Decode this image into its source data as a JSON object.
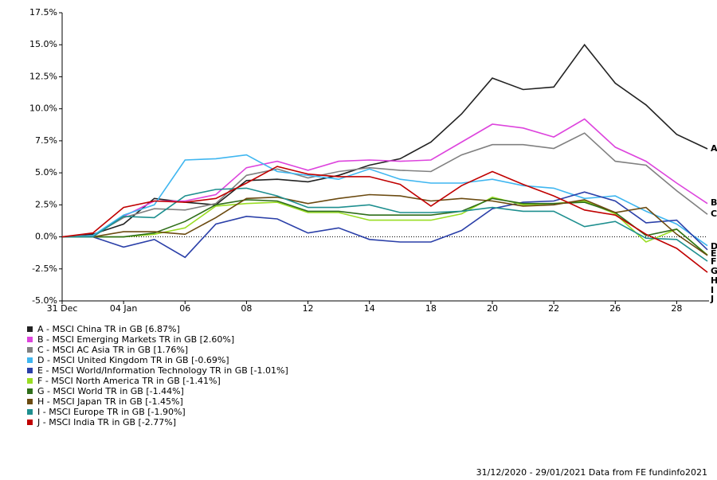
{
  "chart_data": {
    "type": "line",
    "categories": [
      "31 Dec",
      null,
      "04 Jan",
      null,
      "06",
      null,
      "08",
      null,
      "12",
      null,
      "14",
      null,
      "18",
      null,
      "20",
      null,
      "22",
      null,
      "26",
      null,
      "28",
      null
    ],
    "ylim": [
      -5,
      17.5
    ],
    "yticks": [
      {
        "value": -5,
        "label": "-5.0%"
      },
      {
        "value": -2.5,
        "label": "-2.5%"
      },
      {
        "value": 0,
        "label": "0.0%"
      },
      {
        "value": 2.5,
        "label": "2.5%"
      },
      {
        "value": 5,
        "label": "5.0%"
      },
      {
        "value": 7.5,
        "label": "7.5%"
      },
      {
        "value": 10,
        "label": "10.0%"
      },
      {
        "value": 12.5,
        "label": "12.5%"
      },
      {
        "value": 15,
        "label": "15.0%"
      },
      {
        "value": 17.5,
        "label": "17.5%"
      }
    ],
    "footer": "31/12/2020 - 29/01/2021 Data from FE fundinfo2021",
    "series": [
      {
        "name": "A - MSCI China TR in GB [6.87%]",
        "letter": "A",
        "color": "#222222",
        "values": [
          0,
          0.2,
          1.0,
          3.0,
          2.7,
          2.5,
          4.4,
          4.5,
          4.3,
          4.8,
          5.6,
          6.1,
          7.4,
          9.6,
          12.4,
          11.5,
          11.7,
          15.0,
          12.0,
          10.3,
          8.0,
          6.87
        ]
      },
      {
        "name": "B - MSCI Emerging Markets TR in GB [2.60%]",
        "letter": "B",
        "color": "#dd44dd",
        "values": [
          0,
          0.1,
          1.6,
          2.8,
          2.8,
          3.3,
          5.4,
          5.9,
          5.2,
          5.9,
          6.0,
          5.9,
          6.0,
          7.4,
          8.8,
          8.5,
          7.8,
          9.2,
          7.0,
          5.9,
          4.2,
          2.6
        ]
      },
      {
        "name": "C - MSCI AC Asia TR in GB [1.76%]",
        "letter": "C",
        "color": "#808080",
        "values": [
          0,
          0.1,
          1.5,
          2.2,
          2.1,
          2.6,
          4.8,
          5.3,
          4.6,
          5.1,
          5.4,
          5.2,
          5.1,
          6.4,
          7.2,
          7.2,
          6.9,
          8.1,
          5.9,
          5.6,
          3.6,
          1.76
        ]
      },
      {
        "name": "D - MSCI United Kingdom TR in GB [-0.69%]",
        "letter": "D",
        "color": "#3fb6f0",
        "values": [
          0,
          0.1,
          1.7,
          2.5,
          6.0,
          6.1,
          6.4,
          5.1,
          4.8,
          4.5,
          5.3,
          4.5,
          4.2,
          4.2,
          4.5,
          4.0,
          3.8,
          3.0,
          3.2,
          2.0,
          1.0,
          -0.69
        ]
      },
      {
        "name": "E - MSCI World/Information Technology TR in GB [-1.01%]",
        "letter": "E",
        "color": "#2a3fa8",
        "values": [
          0,
          0,
          -0.8,
          -0.2,
          -1.6,
          1.0,
          1.6,
          1.4,
          0.3,
          0.7,
          -0.2,
          -0.4,
          -0.4,
          0.5,
          2.2,
          2.7,
          2.8,
          3.5,
          2.8,
          1.1,
          1.3,
          -1.01
        ]
      },
      {
        "name": "F - MSCI North America TR in GB [-1.41%]",
        "letter": "F",
        "color": "#99dd22",
        "values": [
          0,
          0,
          0,
          0.2,
          0.7,
          2.4,
          2.6,
          2.7,
          1.9,
          1.9,
          1.3,
          1.3,
          1.3,
          1.8,
          3.1,
          2.5,
          2.6,
          2.8,
          1.8,
          -0.4,
          0.6,
          -1.41
        ]
      },
      {
        "name": "G - MSCI World TR in GB [-1.44%]",
        "letter": "G",
        "color": "#2f6e1a",
        "values": [
          0,
          0,
          0,
          0.3,
          1.2,
          2.5,
          2.9,
          2.8,
          2.0,
          2.0,
          1.7,
          1.7,
          1.7,
          2.0,
          3.0,
          2.6,
          2.6,
          2.7,
          1.9,
          0.1,
          0.6,
          -1.44
        ]
      },
      {
        "name": "H - MSCI Japan TR in GB [-1.45%]",
        "letter": "H",
        "color": "#6b4a10",
        "values": [
          0,
          0,
          0.4,
          0.4,
          0.2,
          1.5,
          3.0,
          3.1,
          2.6,
          3.0,
          3.3,
          3.2,
          2.8,
          3.0,
          2.8,
          2.4,
          2.5,
          2.9,
          1.9,
          2.3,
          0.2,
          -1.45
        ]
      },
      {
        "name": "I - MSCI Europe TR in GB [-1.90%]",
        "letter": "I",
        "color": "#1e8f8f",
        "values": [
          0,
          0,
          1.6,
          1.5,
          3.2,
          3.7,
          3.8,
          3.2,
          2.3,
          2.3,
          2.5,
          1.9,
          1.9,
          2.0,
          2.3,
          2.0,
          2.0,
          0.8,
          1.2,
          -0.1,
          -0.2,
          -1.9
        ]
      },
      {
        "name": "J - MSCI India TR in GB [-2.77%]",
        "letter": "J",
        "color": "#c00000",
        "values": [
          0,
          0.3,
          2.3,
          2.8,
          2.7,
          3.0,
          4.2,
          5.5,
          4.9,
          4.7,
          4.7,
          4.1,
          2.4,
          4.0,
          5.1,
          4.1,
          3.2,
          2.1,
          1.7,
          0.2,
          -0.9,
          -2.77
        ]
      }
    ]
  }
}
